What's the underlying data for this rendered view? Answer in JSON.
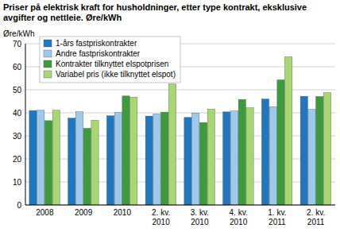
{
  "chart_data": {
    "type": "bar",
    "title": "Priser på elektrisk kraft for husholdninger, etter type kontrakt, eksklusive avgifter og nettleie. Øre/kWh",
    "y_label": "Øre/kWh",
    "categories": [
      "2008",
      "2009",
      "2010",
      "2. kv. 2010",
      "3. kv. 2010",
      "4. kv. 2010",
      "1. kv. 2011",
      "2. kv. 2011"
    ],
    "series": [
      {
        "name": "1-års fastpriskontrakter",
        "color": "#1f77bf",
        "values": [
          41.0,
          37.7,
          38.7,
          38.6,
          38.0,
          40.4,
          46.0,
          47.2
        ]
      },
      {
        "name": "Andre fastpriskontrakter",
        "color": "#9ec9ea",
        "values": [
          41.1,
          40.5,
          40.2,
          39.5,
          39.9,
          40.8,
          42.7,
          41.5
        ]
      },
      {
        "name": "Kontrakter tilknyttet elspotprisen",
        "color": "#3d9b3d",
        "values": [
          36.6,
          33.3,
          47.3,
          40.3,
          35.8,
          45.8,
          54.3,
          47.1
        ]
      },
      {
        "name": "Variabel pris (ikke tilknyttet elspot)",
        "color": "#a8d672",
        "values": [
          41.1,
          36.7,
          46.8,
          52.5,
          41.6,
          42.2,
          64.3,
          48.8
        ]
      }
    ],
    "ylim": [
      0,
      70
    ],
    "yticks": [
      0,
      10,
      20,
      30,
      40,
      50,
      60,
      70
    ],
    "grid": true,
    "legend": "upper left"
  }
}
